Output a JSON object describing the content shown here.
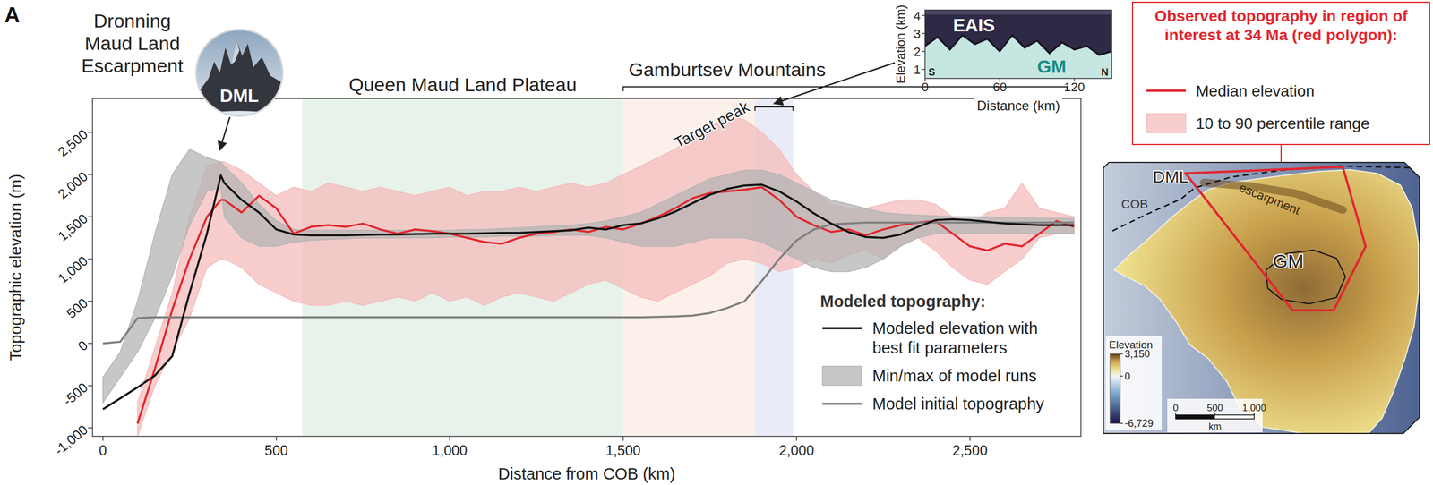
{
  "panel_label": "A",
  "photo": {
    "label": "DML"
  },
  "chart_data": [
    {
      "type": "line",
      "x_label": "Distance from COB (km)",
      "y_label": "Topographic elevation (m)",
      "xlim": [
        -30,
        2820
      ],
      "ylim": [
        -1100,
        2900
      ],
      "xticks": [
        0,
        500,
        {
          "value": 1000,
          "label": "1,000"
        },
        {
          "value": 1500,
          "label": "1,500"
        },
        {
          "value": 2000,
          "label": "2,000"
        },
        {
          "value": 2500,
          "label": "2,500"
        }
      ],
      "yticks": [
        {
          "value": -1000,
          "label": "-1,000"
        },
        -500,
        0,
        500,
        {
          "value": 1000,
          "label": "1,000"
        },
        {
          "value": 1500,
          "label": "1,500"
        },
        {
          "value": 2000,
          "label": "2,000"
        },
        {
          "value": 2500,
          "label": "2,500"
        }
      ],
      "x": [
        0,
        50,
        100,
        150,
        200,
        250,
        300,
        340,
        350,
        400,
        450,
        500,
        550,
        600,
        650,
        700,
        750,
        800,
        850,
        900,
        950,
        1000,
        1050,
        1100,
        1150,
        1200,
        1250,
        1300,
        1350,
        1400,
        1450,
        1500,
        1550,
        1600,
        1650,
        1700,
        1750,
        1800,
        1850,
        1900,
        1950,
        2000,
        2050,
        2100,
        2150,
        2200,
        2250,
        2300,
        2350,
        2400,
        2450,
        2500,
        2550,
        2600,
        2650,
        2700,
        2750,
        2800
      ],
      "series": [
        {
          "name": "10 to 90 percentile range",
          "type": "band",
          "color": "#f4bcbc",
          "lower": [
            null,
            null,
            -1100,
            -500,
            -100,
            300,
            900,
            1000,
            1000,
            900,
            700,
            600,
            500,
            450,
            450,
            500,
            450,
            500,
            550,
            500,
            600,
            500,
            550,
            450,
            550,
            600,
            550,
            500,
            600,
            700,
            750,
            650,
            550,
            500,
            600,
            700,
            800,
            950,
            1000,
            950,
            850,
            900,
            1000,
            950,
            1050,
            1100,
            1000,
            1150,
            1250,
            1100,
            900,
            750,
            700,
            850,
            1000,
            1250,
            1300,
            1300
          ],
          "upper": [
            null,
            null,
            -700,
            -50,
            600,
            1500,
            2100,
            2150,
            2150,
            2050,
            1900,
            1750,
            1850,
            1800,
            1900,
            1850,
            1800,
            1850,
            1800,
            1750,
            1800,
            1850,
            1750,
            1800,
            1800,
            1850,
            1800,
            1850,
            1900,
            1850,
            1900,
            2000,
            2100,
            2200,
            2300,
            2450,
            2550,
            2700,
            2650,
            2500,
            2300,
            2000,
            1800,
            1650,
            1600,
            1600,
            1650,
            1700,
            1700,
            1650,
            1500,
            1400,
            1550,
            1600,
            1900,
            1600,
            1550,
            1500
          ]
        },
        {
          "name": "Median elevation",
          "type": "line",
          "color": "#e3262d",
          "values": [
            null,
            null,
            -950,
            -300,
            400,
            1000,
            1500,
            1700,
            1700,
            1550,
            1750,
            1600,
            1300,
            1380,
            1400,
            1380,
            1420,
            1350,
            1300,
            1350,
            1330,
            1300,
            1250,
            1200,
            1180,
            1250,
            1300,
            1320,
            1350,
            1320,
            1380,
            1350,
            1420,
            1500,
            1600,
            1720,
            1780,
            1800,
            1820,
            1850,
            1700,
            1500,
            1400,
            1320,
            1350,
            1280,
            1350,
            1400,
            1430,
            1450,
            1300,
            1150,
            1100,
            1180,
            1150,
            1300,
            1450,
            1380
          ]
        },
        {
          "name": "Min/max of model runs",
          "type": "band",
          "color": "#b4b4b4",
          "lower": [
            -700,
            -400,
            -100,
            300,
            800,
            1400,
            1800,
            1850,
            1500,
            1250,
            1150,
            1150,
            1200,
            1220,
            1230,
            1240,
            1250,
            1250,
            1250,
            1250,
            1250,
            1260,
            1260,
            1260,
            1270,
            1270,
            1270,
            1280,
            1280,
            1280,
            1250,
            1200,
            1150,
            1150,
            1150,
            1200,
            1250,
            1250,
            1250,
            1200,
            1100,
            1000,
            900,
            850,
            850,
            900,
            1000,
            1150,
            1250,
            1300,
            1300,
            1300,
            1300,
            1300,
            1300,
            1300,
            1300,
            1300
          ],
          "upper": [
            -400,
            -100,
            500,
            1300,
            2000,
            2300,
            2200,
            2150,
            2100,
            1900,
            1650,
            1450,
            1350,
            1340,
            1340,
            1340,
            1340,
            1340,
            1340,
            1340,
            1340,
            1340,
            1350,
            1350,
            1360,
            1370,
            1380,
            1390,
            1400,
            1420,
            1450,
            1500,
            1550,
            1650,
            1750,
            1850,
            1950,
            2000,
            2050,
            2050,
            2000,
            1900,
            1800,
            1700,
            1650,
            1600,
            1550,
            1530,
            1520,
            1510,
            1500,
            1500,
            1500,
            1490,
            1490,
            1480,
            1480,
            1480
          ]
        },
        {
          "name": "Model initial topography",
          "type": "line",
          "color": "#7f7f7f",
          "values": [
            0,
            20,
            300,
            310,
            310,
            310,
            310,
            310,
            310,
            310,
            310,
            310,
            310,
            310,
            310,
            310,
            310,
            310,
            310,
            310,
            310,
            310,
            310,
            310,
            310,
            310,
            310,
            310,
            310,
            310,
            310,
            310,
            310,
            315,
            320,
            330,
            360,
            420,
            500,
            740,
            1000,
            1220,
            1350,
            1410,
            1420,
            1430,
            1430,
            1430,
            1430,
            1430,
            1430,
            1430,
            1430,
            1430,
            1430,
            1430,
            1430,
            1430
          ]
        },
        {
          "name": "Modeled elevation with best fit parameters",
          "type": "line",
          "color": "#111111",
          "values": [
            -780,
            -650,
            -520,
            -380,
            -150,
            600,
            1300,
            1990,
            1900,
            1700,
            1550,
            1350,
            1290,
            1280,
            1280,
            1280,
            1285,
            1290,
            1290,
            1295,
            1300,
            1300,
            1300,
            1305,
            1310,
            1310,
            1320,
            1330,
            1340,
            1370,
            1350,
            1400,
            1420,
            1480,
            1560,
            1660,
            1760,
            1830,
            1870,
            1880,
            1800,
            1680,
            1540,
            1420,
            1320,
            1260,
            1250,
            1290,
            1380,
            1460,
            1470,
            1460,
            1440,
            1420,
            1410,
            1400,
            1400,
            1400
          ]
        }
      ],
      "regions": [
        {
          "name": "Queen Maud Land Plateau",
          "start": 575,
          "end": 1500,
          "color": "#e7f2ea"
        },
        {
          "start": 1500,
          "end": 1880,
          "color": "#fbf1ea"
        },
        {
          "start": 1880,
          "end": 1990,
          "color": "#e9ecf6"
        }
      ],
      "annotations": [
        {
          "text": "Dronning Maud Land Escarpment",
          "x": 340,
          "y": 1990
        },
        {
          "text": "Gamburtsev Mountains",
          "x": 1800,
          "start": 1500,
          "end": 2780
        },
        {
          "text": "Target peak",
          "start": 1880,
          "end": 1990
        }
      ],
      "legend": "right",
      "legend_groups": [
        {
          "title": "Observed topography in region of interest at 34 Ma (red polygon):",
          "series": [
            1,
            0
          ]
        },
        {
          "title": "Modeled topography:",
          "series": [
            4,
            2,
            3
          ]
        }
      ]
    },
    {
      "type": "line",
      "x_label": "Distance (km)",
      "y_label": "Elevation (km)",
      "xlim": [
        0,
        150
      ],
      "ylim": [
        0.5,
        4.3
      ],
      "xticks": [
        0,
        60,
        120
      ],
      "yticks": [
        1,
        2,
        3,
        4
      ],
      "x": [
        0,
        10,
        20,
        30,
        40,
        50,
        60,
        70,
        80,
        90,
        100,
        110,
        120,
        130,
        140,
        150
      ],
      "series": [
        {
          "type": "area",
          "color": "#c6e6e1",
          "values": [
            2.3,
            2.8,
            2.1,
            2.9,
            2.4,
            2.7,
            2.0,
            2.9,
            2.2,
            2.6,
            1.9,
            2.5,
            2.1,
            2.3,
            1.8,
            2.0
          ]
        }
      ],
      "annotations": [
        {
          "text": "EAIS"
        },
        {
          "text": "GM"
        },
        {
          "text": "S"
        },
        {
          "text": "N"
        }
      ]
    }
  ],
  "map": {
    "labels": [
      "DML",
      "escarpment",
      "COB",
      "GM"
    ],
    "colorbar": {
      "label": "Elevation",
      "range": [
        -6729,
        3150
      ],
      "ticks": [
        {
          "value": 3150,
          "label": "3,150"
        },
        0,
        {
          "value": -6729,
          "label": "-6,729"
        }
      ]
    },
    "scale_bar": {
      "ticks": [
        0,
        500,
        {
          "value": 1000,
          "label": "1,000"
        }
      ],
      "unit": "km"
    }
  }
}
